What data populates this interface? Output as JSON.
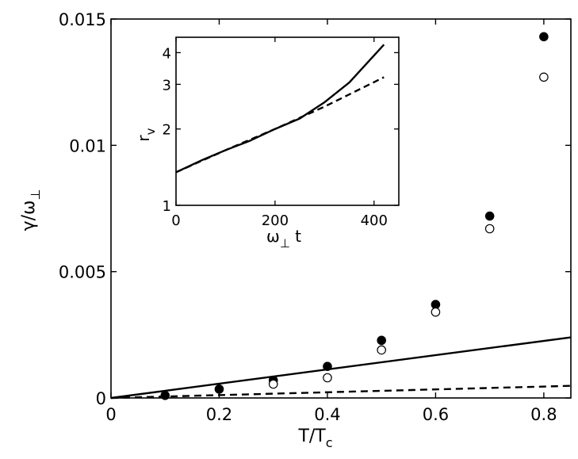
{
  "chart_data": [
    {
      "type": "scatter",
      "xlabel": "T/T",
      "xlabel_sub": "c",
      "ylabel": "γ/ω",
      "ylabel_sub": "⊥",
      "xlim": [
        0,
        0.85
      ],
      "ylim": [
        0,
        0.015
      ],
      "x_ticks": [
        0,
        0.2,
        0.4,
        0.6,
        0.8
      ],
      "x_tick_labels": [
        "0",
        "0.2",
        "0.4",
        "0.6",
        "0.8"
      ],
      "y_ticks": [
        0,
        0.005,
        0.01,
        0.015
      ],
      "y_tick_labels": [
        "0",
        "0.005",
        "0.01",
        "0.015"
      ],
      "grid": false,
      "series": [
        {
          "marker": "filled-circle",
          "x": [
            0.1,
            0.2,
            0.3,
            0.4,
            0.5,
            0.6,
            0.7,
            0.8
          ],
          "y": [
            0.0001,
            0.00035,
            0.0007,
            0.00125,
            0.00228,
            0.0037,
            0.0072,
            0.0143
          ]
        },
        {
          "marker": "open-circle",
          "x": [
            0.3,
            0.4,
            0.5,
            0.6,
            0.7,
            0.8
          ],
          "y": [
            0.00055,
            0.0008,
            0.0019,
            0.0034,
            0.0067,
            0.0127
          ]
        },
        {
          "style": "solid-line",
          "x": [
            0,
            0.85
          ],
          "y": [
            0,
            0.0024
          ]
        },
        {
          "style": "dashed-line",
          "x": [
            0,
            0.85
          ],
          "y": [
            0,
            0.00048
          ]
        }
      ]
    },
    {
      "type": "line",
      "inset": true,
      "xlabel": "ω t",
      "xlabel_sub": "⊥",
      "ylabel": "r",
      "ylabel_sub": "v",
      "xlim": [
        0,
        450
      ],
      "ylim": [
        1,
        4.6
      ],
      "y_scale": "log",
      "x_ticks": [
        0,
        200,
        400
      ],
      "x_tick_labels": [
        "0",
        "200",
        "400"
      ],
      "y_ticks": [
        1,
        2,
        3,
        4
      ],
      "y_tick_labels": [
        "1",
        "2",
        "3",
        "4"
      ],
      "grid": false,
      "series": [
        {
          "style": "solid-line",
          "x": [
            0,
            50,
            100,
            150,
            200,
            250,
            300,
            350,
            400,
            420
          ],
          "y": [
            1.35,
            1.5,
            1.65,
            1.8,
            2.0,
            2.2,
            2.55,
            3.05,
            3.9,
            4.3
          ]
        },
        {
          "style": "dashed-line",
          "x": [
            0,
            100,
            200,
            300,
            420
          ],
          "y": [
            1.35,
            1.65,
            2.0,
            2.45,
            3.2
          ]
        }
      ]
    }
  ]
}
